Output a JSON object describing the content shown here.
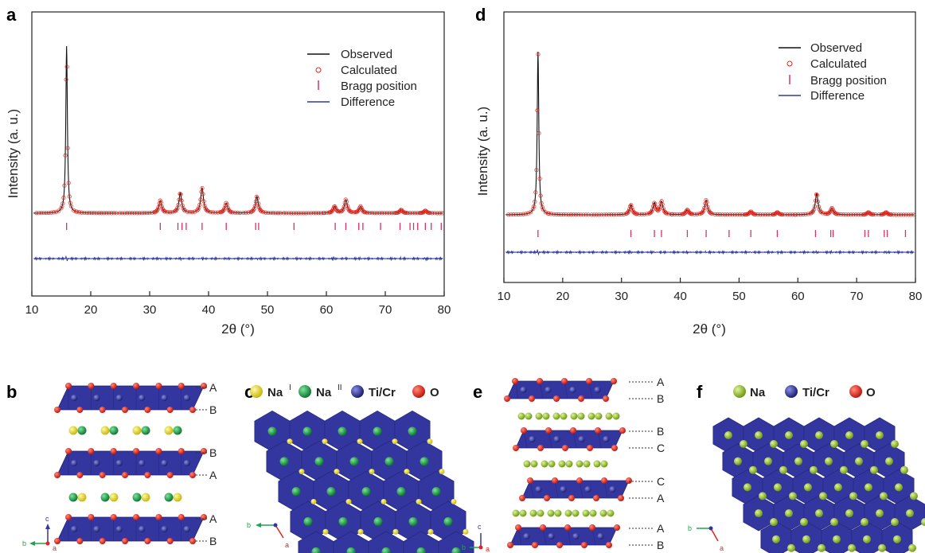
{
  "panels": {
    "a": {
      "letter": "a"
    },
    "b": {
      "letter": "b",
      "stack_labels": [
        "A",
        "B",
        "B",
        "A",
        "A",
        "B"
      ],
      "axes": [
        "c",
        "b",
        "a"
      ]
    },
    "c": {
      "letter": "c",
      "legend": [
        {
          "label": "Na",
          "sup": "I",
          "color": "#f2e51a"
        },
        {
          "label": "Na",
          "sup": "II",
          "color": "#1aa64a"
        },
        {
          "label": "Ti/Cr",
          "sup": "",
          "color": "#33369e"
        },
        {
          "label": "O",
          "sup": "",
          "color": "#e8231a"
        }
      ],
      "axes": [
        "b",
        "a"
      ]
    },
    "d": {
      "letter": "d"
    },
    "e": {
      "letter": "e",
      "stack_labels": [
        "A",
        "B",
        "B",
        "C",
        "C",
        "A",
        "A",
        "B"
      ],
      "axes": [
        "c",
        "b",
        "a"
      ]
    },
    "f": {
      "letter": "f",
      "legend": [
        {
          "label": "Na",
          "color": "#9ccc2e"
        },
        {
          "label": "Ti/Cr",
          "color": "#33369e"
        },
        {
          "label": "O",
          "color": "#e8231a"
        }
      ],
      "axes": [
        "b",
        "a"
      ]
    }
  },
  "colors": {
    "observed": "#111111",
    "calculated": "#e8231a",
    "bragg": "#d9306e",
    "difference": "#2f3a9a",
    "octahedra": "#33369e"
  },
  "chart_data": [
    {
      "panel": "a",
      "type": "line",
      "xlabel": "2θ (°)",
      "ylabel": "Intensity (a. u.)",
      "xlim": [
        10,
        80
      ],
      "xticks": [
        10,
        20,
        30,
        40,
        50,
        60,
        70,
        80
      ],
      "legend": [
        "Observed",
        "Calculated",
        "Bragg position",
        "Difference"
      ],
      "legend_position": "top-right",
      "peaks": [
        {
          "x": 15.9,
          "height": 1.0
        },
        {
          "x": 31.8,
          "height": 0.075
        },
        {
          "x": 35.2,
          "height": 0.12
        },
        {
          "x": 38.9,
          "height": 0.15
        },
        {
          "x": 43.0,
          "height": 0.06
        },
        {
          "x": 48.2,
          "height": 0.1
        },
        {
          "x": 61.4,
          "height": 0.04
        },
        {
          "x": 63.3,
          "height": 0.08
        },
        {
          "x": 65.8,
          "height": 0.04
        },
        {
          "x": 72.7,
          "height": 0.02
        },
        {
          "x": 76.8,
          "height": 0.015
        }
      ],
      "bragg_positions": [
        15.9,
        31.8,
        34.8,
        35.5,
        36.2,
        38.9,
        43.0,
        48.0,
        48.5,
        54.5,
        61.5,
        63.3,
        65.5,
        66.2,
        69.2,
        72.5,
        74.2,
        74.8,
        75.5,
        76.8,
        77.8,
        79.5
      ]
    },
    {
      "panel": "d",
      "type": "line",
      "xlabel": "2θ (°)",
      "ylabel": "Intensity (a. u.)",
      "xlim": [
        10,
        80
      ],
      "xticks": [
        10,
        20,
        30,
        40,
        50,
        60,
        70,
        80
      ],
      "legend": [
        "Observed",
        "Calculated",
        "Bragg position",
        "Difference"
      ],
      "legend_position": "top-right",
      "peaks": [
        {
          "x": 15.8,
          "height": 1.0
        },
        {
          "x": 31.6,
          "height": 0.06
        },
        {
          "x": 35.6,
          "height": 0.07
        },
        {
          "x": 36.8,
          "height": 0.08
        },
        {
          "x": 41.2,
          "height": 0.03
        },
        {
          "x": 44.4,
          "height": 0.09
        },
        {
          "x": 52.0,
          "height": 0.02
        },
        {
          "x": 56.5,
          "height": 0.015
        },
        {
          "x": 63.2,
          "height": 0.13
        },
        {
          "x": 65.8,
          "height": 0.04
        },
        {
          "x": 72.0,
          "height": 0.015
        },
        {
          "x": 75.0,
          "height": 0.015
        }
      ],
      "bragg_positions": [
        15.8,
        31.6,
        35.6,
        36.8,
        41.2,
        44.4,
        48.3,
        52.0,
        56.5,
        63.0,
        65.6,
        66.0,
        71.4,
        72.0,
        74.7,
        75.2,
        78.3
      ]
    }
  ]
}
